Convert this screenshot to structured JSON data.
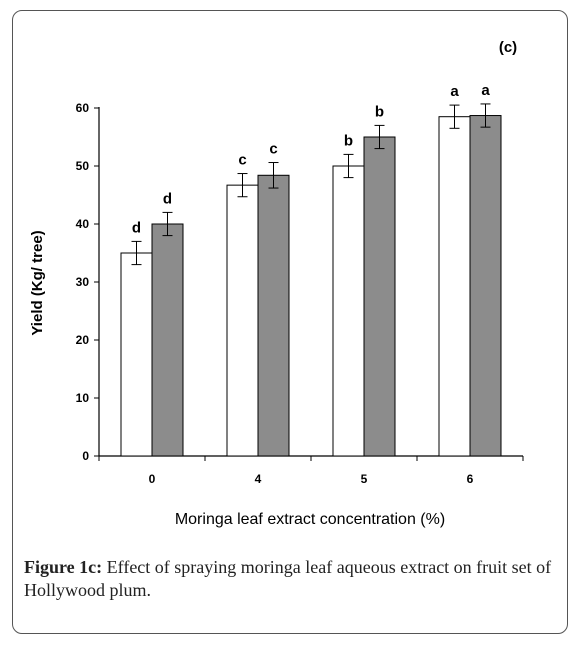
{
  "panel_label": "(c)",
  "caption": {
    "label": "Figure 1c:",
    "text": "Effect of spraying moringa leaf aqueous extract on fruit set of Hollywood plum."
  },
  "chart_data": {
    "type": "bar",
    "title": "",
    "xlabel": "Moringa leaf extract concentration (%)",
    "ylabel": "Yield (Kg/ tree)",
    "categories": [
      "0",
      "4",
      "5",
      "6"
    ],
    "ylim": [
      0,
      60
    ],
    "yticks": [
      0,
      10,
      20,
      30,
      40,
      50,
      60
    ],
    "grid": false,
    "legend": "none",
    "series": [
      {
        "color": "#ffffff",
        "values": [
          35,
          46.7,
          50,
          58.5
        ],
        "errors": [
          2,
          2,
          2,
          2
        ],
        "letters": [
          "d",
          "c",
          "b",
          "a"
        ]
      },
      {
        "color": "#8c8c8c",
        "values": [
          40,
          48.4,
          55,
          58.7
        ],
        "errors": [
          2,
          2.2,
          2,
          2
        ],
        "letters": [
          "d",
          "c",
          "b",
          "a"
        ]
      }
    ]
  }
}
